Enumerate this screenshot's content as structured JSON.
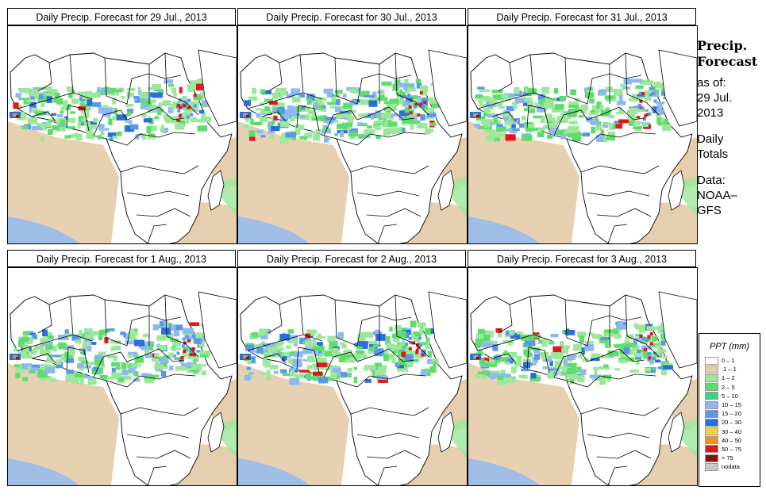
{
  "panels": [
    {
      "title": "Daily Precip. Forecast for  29 Jul., 2013"
    },
    {
      "title": "Daily Precip. Forecast for  30 Jul., 2013"
    },
    {
      "title": "Daily Precip. Forecast for  31 Jul., 2013"
    },
    {
      "title": "Daily Precip. Forecast for  1 Aug., 2013"
    },
    {
      "title": "Daily Precip. Forecast for  2 Aug., 2013"
    },
    {
      "title": "Daily Precip. Forecast for  3 Aug., 2013"
    }
  ],
  "side": {
    "heading1": "Precip.",
    "heading2": "Forecast",
    "asof": "as of:",
    "date1": "29 Jul.",
    "date2": "2013",
    "daily": "Daily",
    "totals": "Totals",
    "data": "Data:",
    "src1": "NOAA–",
    "src2": "GFS"
  },
  "legend": {
    "title": "PPT (mm)",
    "items": [
      {
        "label": "0 – 1",
        "color": "#ffffff"
      },
      {
        "label": ".1 – 1",
        "color": "#e6cfae"
      },
      {
        "label": "1 – 2",
        "color": "#9be89b"
      },
      {
        "label": "2 – 5",
        "color": "#5fdc6e"
      },
      {
        "label": "5 – 10",
        "color": "#3fd080"
      },
      {
        "label": "10 – 15",
        "color": "#8fb8f2"
      },
      {
        "label": "15 – 20",
        "color": "#5a96ec"
      },
      {
        "label": "20 – 30",
        "color": "#2a6ed8"
      },
      {
        "label": "30 – 40",
        "color": "#f3d040"
      },
      {
        "label": "40 – 50",
        "color": "#f39020"
      },
      {
        "label": "50 – 75",
        "color": "#e01818"
      },
      {
        "label": "> 75",
        "color": "#8e1010"
      },
      {
        "label": "nodata",
        "color": "#c8c8c8"
      }
    ]
  }
}
